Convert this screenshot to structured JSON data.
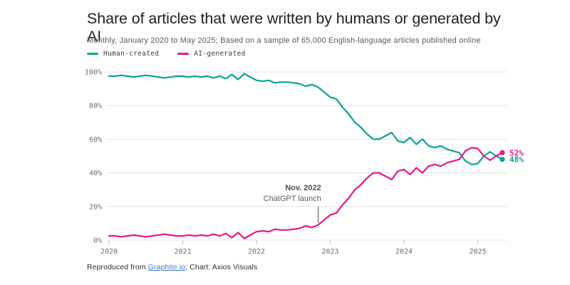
{
  "header": {
    "title": "Share of articles that were written by humans or generated by AI",
    "subtitle": "Monthly, January 2020 to May 2025; Based on a sample of 65,000 English-language articles published online"
  },
  "legend": [
    {
      "label": "Human-created",
      "color": "#0ca394"
    },
    {
      "label": "AI-generated",
      "color": "#e8178a"
    }
  ],
  "chart_data": {
    "type": "line",
    "title": "Share of articles that were written by humans or generated by AI",
    "x_unit": "month",
    "x_start": "2020-01",
    "x_end": "2025-05",
    "xticks": [
      "2020",
      "2021",
      "2022",
      "2023",
      "2024",
      "2025"
    ],
    "yticks": [
      "100%",
      "80%",
      "60%",
      "40%",
      "20%",
      "0%"
    ],
    "ytick_values": [
      100,
      80,
      60,
      40,
      20,
      0
    ],
    "ylim": [
      0,
      100
    ],
    "grid": "horizontal",
    "legend_position": "top-left",
    "series": [
      {
        "name": "Human-created",
        "color": "#0ca394",
        "end_label": "48%",
        "end_value": 48,
        "values": [
          97.5,
          97.5,
          98,
          97.5,
          97,
          97.5,
          98,
          97.5,
          97,
          96.5,
          97,
          97.5,
          97.5,
          97,
          97.5,
          97,
          97.5,
          96.5,
          97.5,
          96,
          98.5,
          95.5,
          99,
          97,
          95,
          94.5,
          95,
          93.5,
          94,
          94,
          93.5,
          93,
          91.5,
          92.5,
          91,
          88,
          85,
          84,
          79,
          75,
          70,
          67,
          63,
          60,
          60,
          62,
          64,
          59,
          58,
          61,
          57,
          60,
          56,
          55,
          56,
          54,
          53,
          52,
          47,
          45,
          45.5,
          50,
          52.5,
          50,
          48
        ]
      },
      {
        "name": "AI-generated",
        "color": "#e8178a",
        "end_label": "52%",
        "end_value": 52,
        "values": [
          2.5,
          2.5,
          2,
          2.5,
          3,
          2.5,
          2,
          2.5,
          3,
          3.5,
          3,
          2.5,
          2.5,
          3,
          2.5,
          3,
          2.5,
          3.5,
          2.5,
          4,
          1.5,
          4.5,
          1,
          3,
          5,
          5.5,
          5,
          6.5,
          6,
          6,
          6.5,
          7,
          8.5,
          7.5,
          9,
          12,
          15,
          16,
          21,
          25,
          30,
          33,
          37,
          40,
          40,
          38,
          36,
          41,
          42,
          39,
          43,
          40,
          44,
          45,
          44,
          46,
          47,
          48,
          53,
          55,
          54.5,
          50,
          47.5,
          50,
          52
        ]
      }
    ],
    "annotation": {
      "line1": "Nov. 2022",
      "line2": "ChatGPT launch",
      "month_index": 34
    }
  },
  "footer": {
    "prefix": "Reproduced from ",
    "link": "Graphite.io",
    "suffix": "; Chart: Axios Visuals"
  }
}
